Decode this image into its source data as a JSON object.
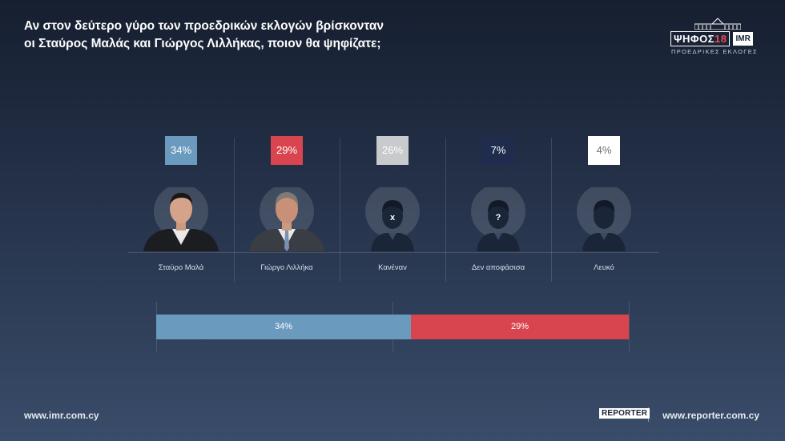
{
  "title_lines": [
    "Αν στον δεύτερο γύρο των προεδρικών εκλογών βρίσκονταν",
    "οι Σταύρος Μαλάς και Γιώργος Λιλλήκας, ποιον θα ψηφίζατε;"
  ],
  "logo": {
    "name_prefix": "ΨΗΦΟΣ",
    "name_number": "18",
    "partner": "IMR",
    "subtitle": "ΠΡΟΕΔΡΙΚΕΣ ΕΚΛΟΓΕΣ"
  },
  "chart_data": [
    {
      "type": "bar",
      "categories": [
        "Σταύρο Μαλά",
        "Γιώργο Λιλλήκα",
        "Κανέναν",
        "Δεν αποφάσισα",
        "Λευκό"
      ],
      "values": [
        34,
        29,
        26,
        7,
        4
      ],
      "value_labels": [
        "34%",
        "29%",
        "26%",
        "7%",
        "4%"
      ],
      "colors": [
        "#6b9abf",
        "#d9454e",
        "#c8cacd",
        "#1f2c4d",
        "#ffffff"
      ],
      "label_colors": [
        "#ffffff",
        "#ffffff",
        "#ffffff",
        "#ffffff",
        "#6b6f78"
      ],
      "portraits": [
        "photo-man",
        "photo-man",
        "silhouette-x",
        "silhouette-question",
        "silhouette-plain"
      ],
      "portrait_marks": [
        "",
        "",
        "x",
        "?",
        ""
      ]
    },
    {
      "type": "bar",
      "orientation": "horizontal-stacked",
      "categories": [
        "Σταύρο Μαλά",
        "Γιώργο Λιλλήκα"
      ],
      "values": [
        34,
        29
      ],
      "value_labels": [
        "34%",
        "29%"
      ],
      "colors": [
        "#6b9abf",
        "#d9454e"
      ]
    }
  ],
  "footer": {
    "left": "www.imr.com.cy",
    "reporter_logo": "REPORTER",
    "right": "www.reporter.com.cy"
  }
}
